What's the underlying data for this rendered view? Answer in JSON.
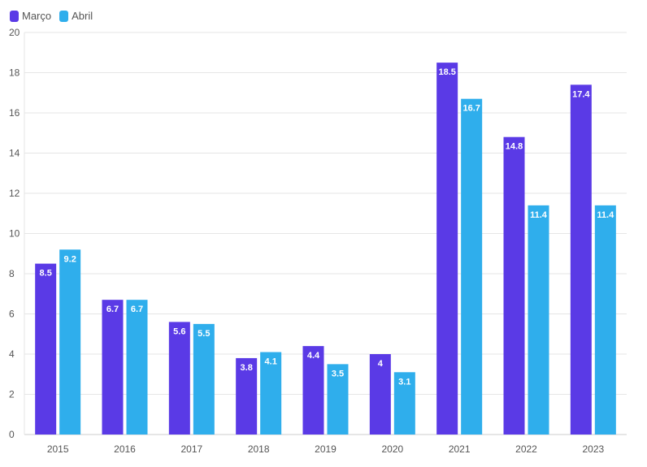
{
  "chart_data": {
    "type": "bar",
    "categories": [
      "2015",
      "2016",
      "2017",
      "2018",
      "2019",
      "2020",
      "2021",
      "2022",
      "2023"
    ],
    "series": [
      {
        "name": "Março",
        "color": "#5a3ae6",
        "values": [
          8.5,
          6.7,
          5.6,
          3.8,
          4.4,
          4,
          18.5,
          14.8,
          17.4
        ]
      },
      {
        "name": "Abril",
        "color": "#2faeec",
        "values": [
          9.2,
          6.7,
          5.5,
          4.1,
          3.5,
          3.1,
          16.7,
          11.4,
          11.4
        ]
      }
    ],
    "yticks": [
      0,
      2,
      4,
      6,
      8,
      10,
      12,
      14,
      16,
      18,
      20
    ],
    "ylim": [
      0,
      20
    ],
    "grid": true,
    "legend": "top-left",
    "data_labels": true
  }
}
